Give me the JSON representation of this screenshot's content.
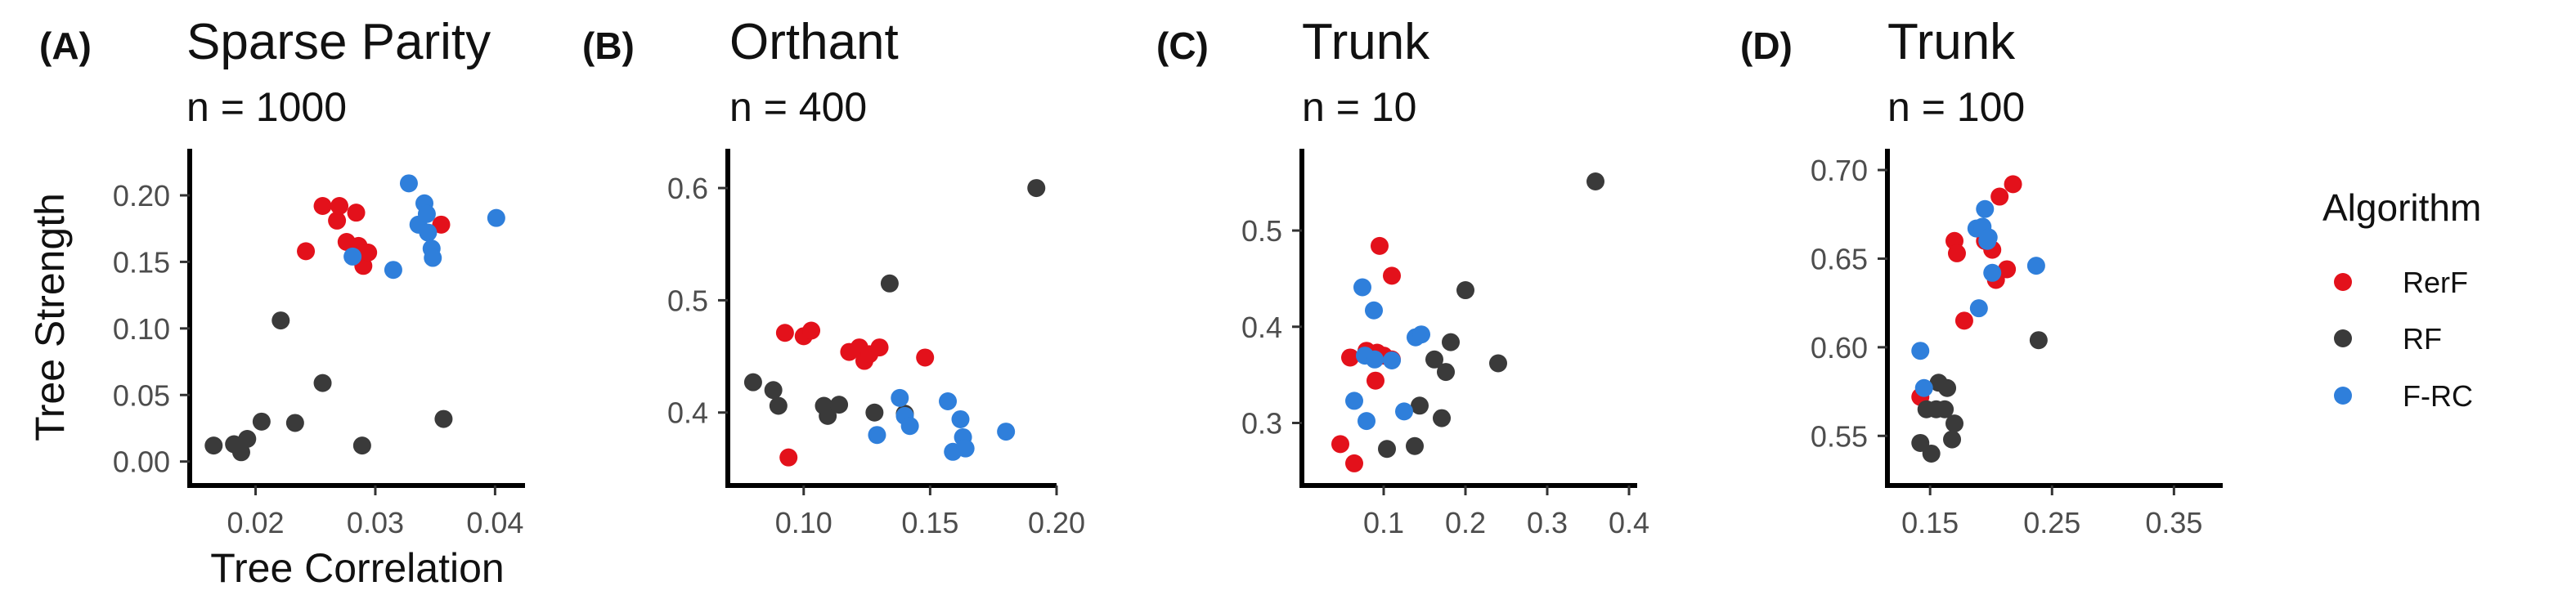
{
  "legend": {
    "title": "Algorithm",
    "items": [
      {
        "name": "RerF",
        "color": "#e3111b"
      },
      {
        "name": "RF",
        "color": "#3a3a3a"
      },
      {
        "name": "F-RC",
        "color": "#2f7fdb"
      }
    ],
    "placement": "right"
  },
  "chart_data": [
    {
      "type": "scatter",
      "panel": "(A)",
      "title": "Sparse Parity",
      "subtitle": "n = 1000",
      "xlabel": "Tree Correlation",
      "ylabel": "Tree Strength",
      "xlim": [
        0.0145,
        0.0425
      ],
      "ylim": [
        -0.018,
        0.235
      ],
      "xticks": [
        0.02,
        0.03,
        0.04
      ],
      "xtick_labels": [
        "0.02",
        "0.03",
        "0.04"
      ],
      "yticks": [
        0.0,
        0.05,
        0.1,
        0.15,
        0.2
      ],
      "ytick_labels": [
        "0.00",
        "0.05",
        "0.10",
        "0.15",
        "0.20"
      ],
      "grid": false,
      "series": [
        {
          "name": "RerF",
          "points": [
            [
              0.0242,
              0.158
            ],
            [
              0.0256,
              0.192
            ],
            [
              0.0268,
              0.181
            ],
            [
              0.027,
              0.192
            ],
            [
              0.0276,
              0.165
            ],
            [
              0.0284,
              0.187
            ],
            [
              0.0286,
              0.162
            ],
            [
              0.029,
              0.147
            ],
            [
              0.0294,
              0.157
            ],
            [
              0.0355,
              0.178
            ]
          ]
        },
        {
          "name": "RF",
          "points": [
            [
              0.0165,
              0.012
            ],
            [
              0.0182,
              0.013
            ],
            [
              0.0188,
              0.007
            ],
            [
              0.0193,
              0.017
            ],
            [
              0.0205,
              0.03
            ],
            [
              0.0221,
              0.106
            ],
            [
              0.0233,
              0.029
            ],
            [
              0.0256,
              0.059
            ],
            [
              0.0289,
              0.012
            ],
            [
              0.0357,
              0.032
            ]
          ]
        },
        {
          "name": "F-RC",
          "points": [
            [
              0.0281,
              0.154
            ],
            [
              0.0315,
              0.144
            ],
            [
              0.0328,
              0.209
            ],
            [
              0.0336,
              0.178
            ],
            [
              0.0341,
              0.194
            ],
            [
              0.0343,
              0.186
            ],
            [
              0.0344,
              0.172
            ],
            [
              0.0347,
              0.16
            ],
            [
              0.0348,
              0.153
            ],
            [
              0.0401,
              0.183
            ]
          ]
        }
      ]
    },
    {
      "type": "scatter",
      "panel": "(B)",
      "title": "Orthant",
      "subtitle": "n = 400",
      "xlabel": "",
      "ylabel": "",
      "xlim": [
        0.07,
        0.2
      ],
      "ylim": [
        0.335,
        0.635
      ],
      "xticks": [
        0.1,
        0.15,
        0.2
      ],
      "xtick_labels": [
        "0.10",
        "0.15",
        "0.20"
      ],
      "yticks": [
        0.4,
        0.5,
        0.6
      ],
      "ytick_labels": [
        "0.4",
        "0.5",
        "0.6"
      ],
      "grid": false,
      "series": [
        {
          "name": "RerF",
          "points": [
            [
              0.0926,
              0.471
            ],
            [
              0.094,
              0.36
            ],
            [
              0.1,
              0.468
            ],
            [
              0.103,
              0.473
            ],
            [
              0.118,
              0.454
            ],
            [
              0.122,
              0.458
            ],
            [
              0.124,
              0.446
            ],
            [
              0.126,
              0.452
            ],
            [
              0.13,
              0.458
            ],
            [
              0.148,
              0.449
            ]
          ]
        },
        {
          "name": "RF",
          "points": [
            [
              0.08,
              0.427
            ],
            [
              0.088,
              0.42
            ],
            [
              0.09,
              0.406
            ],
            [
              0.108,
              0.406
            ],
            [
              0.1095,
              0.397
            ],
            [
              0.114,
              0.407
            ],
            [
              0.128,
              0.4
            ],
            [
              0.134,
              0.515
            ],
            [
              0.14,
              0.399
            ],
            [
              0.192,
              0.6
            ]
          ]
        },
        {
          "name": "F-RC",
          "points": [
            [
              0.129,
              0.38
            ],
            [
              0.138,
              0.413
            ],
            [
              0.14,
              0.397
            ],
            [
              0.142,
              0.388
            ],
            [
              0.157,
              0.41
            ],
            [
              0.159,
              0.365
            ],
            [
              0.162,
              0.394
            ],
            [
              0.163,
              0.378
            ],
            [
              0.164,
              0.368
            ],
            [
              0.18,
              0.383
            ]
          ]
        }
      ]
    },
    {
      "type": "scatter",
      "panel": "(C)",
      "title": "Trunk",
      "subtitle": "n = 10",
      "xlabel": "",
      "ylabel": "",
      "xlim": [
        0.0,
        0.41
      ],
      "ylim": [
        0.235,
        0.585
      ],
      "xticks": [
        0.1,
        0.2,
        0.3,
        0.4
      ],
      "xtick_labels": [
        "0.1",
        "0.2",
        "0.3",
        "0.4"
      ],
      "yticks": [
        0.3,
        0.4,
        0.5
      ],
      "ytick_labels": [
        "0.3",
        "0.4",
        "0.5"
      ],
      "grid": false,
      "series": [
        {
          "name": "RerF",
          "points": [
            [
              0.047,
              0.278
            ],
            [
              0.059,
              0.368
            ],
            [
              0.064,
              0.258
            ],
            [
              0.079,
              0.375
            ],
            [
              0.09,
              0.344
            ],
            [
              0.092,
              0.373
            ],
            [
              0.095,
              0.484
            ],
            [
              0.1,
              0.37
            ],
            [
              0.11,
              0.453
            ],
            [
              0.11,
              0.366
            ]
          ]
        },
        {
          "name": "RF",
          "points": [
            [
              0.104,
              0.273
            ],
            [
              0.138,
              0.276
            ],
            [
              0.144,
              0.318
            ],
            [
              0.162,
              0.366
            ],
            [
              0.171,
              0.305
            ],
            [
              0.176,
              0.353
            ],
            [
              0.182,
              0.384
            ],
            [
              0.2,
              0.438
            ],
            [
              0.24,
              0.362
            ],
            [
              0.359,
              0.551
            ]
          ]
        },
        {
          "name": "F-RC",
          "points": [
            [
              0.064,
              0.323
            ],
            [
              0.074,
              0.441
            ],
            [
              0.077,
              0.37
            ],
            [
              0.079,
              0.302
            ],
            [
              0.088,
              0.417
            ],
            [
              0.089,
              0.366
            ],
            [
              0.11,
              0.365
            ],
            [
              0.125,
              0.312
            ],
            [
              0.139,
              0.389
            ],
            [
              0.146,
              0.392
            ]
          ]
        }
      ]
    },
    {
      "type": "scatter",
      "panel": "(D)",
      "title": "Trunk",
      "subtitle": "n = 100",
      "xlabel": "",
      "ylabel": "",
      "xlim": [
        0.115,
        0.39
      ],
      "ylim": [
        0.522,
        0.712
      ],
      "xticks": [
        0.15,
        0.25,
        0.35
      ],
      "xtick_labels": [
        "0.15",
        "0.25",
        "0.35"
      ],
      "yticks": [
        0.55,
        0.6,
        0.65,
        0.7
      ],
      "ytick_labels": [
        "0.55",
        "0.60",
        "0.65",
        "0.70"
      ],
      "grid": false,
      "series": [
        {
          "name": "RerF",
          "points": [
            [
              0.142,
              0.572
            ],
            [
              0.17,
              0.66
            ],
            [
              0.172,
              0.653
            ],
            [
              0.178,
              0.615
            ],
            [
              0.195,
              0.66
            ],
            [
              0.201,
              0.655
            ],
            [
              0.204,
              0.638
            ],
            [
              0.207,
              0.685
            ],
            [
              0.213,
              0.644
            ],
            [
              0.218,
              0.692
            ]
          ]
        },
        {
          "name": "RF",
          "points": [
            [
              0.142,
              0.546
            ],
            [
              0.147,
              0.565
            ],
            [
              0.151,
              0.54
            ],
            [
              0.155,
              0.565
            ],
            [
              0.157,
              0.58
            ],
            [
              0.162,
              0.565
            ],
            [
              0.164,
              0.577
            ],
            [
              0.168,
              0.548
            ],
            [
              0.17,
              0.557
            ],
            [
              0.239,
              0.604
            ]
          ]
        },
        {
          "name": "F-RC",
          "points": [
            [
              0.142,
              0.598
            ],
            [
              0.145,
              0.577
            ],
            [
              0.188,
              0.667
            ],
            [
              0.19,
              0.622
            ],
            [
              0.193,
              0.668
            ],
            [
              0.195,
              0.678
            ],
            [
              0.197,
              0.66
            ],
            [
              0.198,
              0.662
            ],
            [
              0.201,
              0.642
            ],
            [
              0.237,
              0.646
            ]
          ]
        }
      ]
    }
  ]
}
